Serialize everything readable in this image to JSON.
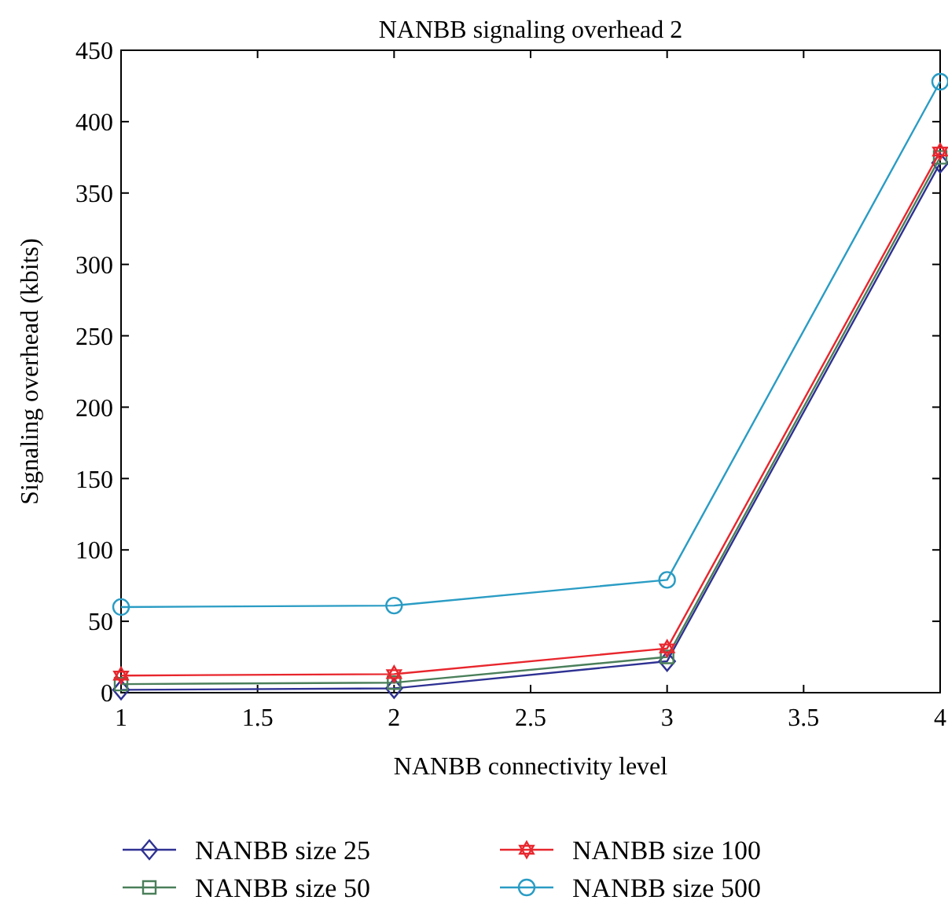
{
  "chart_data": {
    "type": "line",
    "title": "NANBB signaling overhead 2",
    "xlabel": "NANBB connectivity level",
    "ylabel": "Signaling overhead (kbits)",
    "x": [
      1,
      2,
      3,
      4
    ],
    "xlim": [
      1,
      4
    ],
    "xticks": [
      1,
      1.5,
      2,
      2.5,
      3,
      3.5,
      4
    ],
    "ylim": [
      0,
      450
    ],
    "yticks": [
      0,
      50,
      100,
      150,
      200,
      250,
      300,
      350,
      400,
      450
    ],
    "grid": false,
    "legend": "bottom",
    "series": [
      {
        "name": "NANBB size 25",
        "color": "#2e3192",
        "marker": "diamond",
        "values": [
          2,
          3,
          22,
          371
        ]
      },
      {
        "name": "NANBB size 50",
        "color": "#4a7f5a",
        "marker": "square",
        "values": [
          6,
          7,
          25,
          375
        ]
      },
      {
        "name": "NANBB size 100",
        "color": "#e8262d",
        "marker": "star",
        "values": [
          12,
          13,
          31,
          379
        ]
      },
      {
        "name": "NANBB size 500",
        "color": "#2a9cc4",
        "marker": "circle",
        "values": [
          60,
          61,
          79,
          428
        ]
      }
    ]
  }
}
